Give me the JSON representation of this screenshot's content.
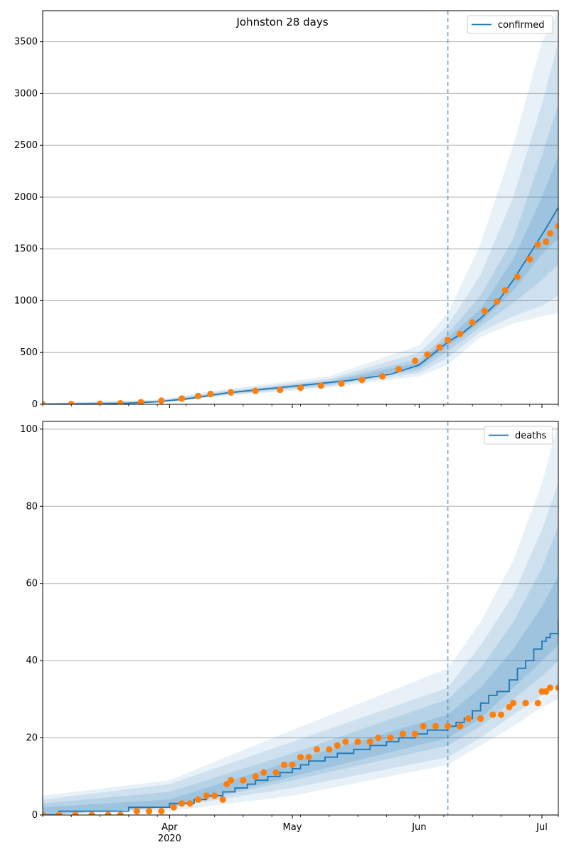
{
  "chart_data": [
    {
      "type": "line",
      "title": "Johnston 28 days",
      "xlabel": "",
      "ylabel": "",
      "x_axis": "date",
      "x_range": [
        "2020-03-01",
        "2020-07-05"
      ],
      "ylim": [
        0,
        3800
      ],
      "yticks": [
        0,
        500,
        1000,
        1500,
        2000,
        2500,
        3000,
        3500
      ],
      "grid": "horizontal",
      "legend": "top-right",
      "forecast_start": "2020-06-08",
      "series": [
        {
          "name": "confirmed",
          "kind": "line",
          "points": [
            [
              "2020-03-01",
              2
            ],
            [
              "2020-03-15",
              4
            ],
            [
              "2020-03-22",
              10
            ],
            [
              "2020-03-29",
              25
            ],
            [
              "2020-04-05",
              50
            ],
            [
              "2020-04-10",
              80
            ],
            [
              "2020-04-15",
              110
            ],
            [
              "2020-04-25",
              150
            ],
            [
              "2020-05-05",
              190
            ],
            [
              "2020-05-15",
              230
            ],
            [
              "2020-05-25",
              290
            ],
            [
              "2020-06-01",
              380
            ],
            [
              "2020-06-08",
              600
            ],
            [
              "2020-06-12",
              700
            ],
            [
              "2020-06-16",
              830
            ],
            [
              "2020-06-20",
              980
            ],
            [
              "2020-06-24",
              1200
            ],
            [
              "2020-06-28",
              1450
            ],
            [
              "2020-07-02",
              1700
            ],
            [
              "2020-07-05",
              1900
            ]
          ]
        },
        {
          "name": "",
          "kind": "scatter",
          "points": [
            [
              "2020-03-01",
              0
            ],
            [
              "2020-03-08",
              2
            ],
            [
              "2020-03-15",
              5
            ],
            [
              "2020-03-20",
              10
            ],
            [
              "2020-03-25",
              20
            ],
            [
              "2020-03-30",
              35
            ],
            [
              "2020-04-04",
              55
            ],
            [
              "2020-04-08",
              80
            ],
            [
              "2020-04-11",
              100
            ],
            [
              "2020-04-16",
              115
            ],
            [
              "2020-04-22",
              130
            ],
            [
              "2020-04-28",
              140
            ],
            [
              "2020-05-03",
              160
            ],
            [
              "2020-05-08",
              180
            ],
            [
              "2020-05-13",
              200
            ],
            [
              "2020-05-18",
              235
            ],
            [
              "2020-05-23",
              270
            ],
            [
              "2020-05-27",
              340
            ],
            [
              "2020-05-31",
              420
            ],
            [
              "2020-06-03",
              480
            ],
            [
              "2020-06-06",
              550
            ],
            [
              "2020-06-08",
              620
            ],
            [
              "2020-06-11",
              680
            ],
            [
              "2020-06-14",
              790
            ],
            [
              "2020-06-17",
              900
            ],
            [
              "2020-06-20",
              990
            ],
            [
              "2020-06-22",
              1100
            ],
            [
              "2020-06-25",
              1230
            ],
            [
              "2020-06-28",
              1400
            ],
            [
              "2020-06-30",
              1540
            ],
            [
              "2020-07-02",
              1570
            ],
            [
              "2020-07-03",
              1650
            ],
            [
              "2020-07-05",
              1720
            ]
          ]
        }
      ],
      "bands": [
        {
          "opacity": 0.1,
          "points": [
            [
              "2020-03-01",
              0,
              10
            ],
            [
              "2020-03-29",
              12,
              45
            ],
            [
              "2020-04-15",
              80,
              150
            ],
            [
              "2020-05-10",
              160,
              270
            ],
            [
              "2020-06-01",
              270,
              570
            ],
            [
              "2020-06-08",
              380,
              880
            ],
            [
              "2020-06-16",
              650,
              1550
            ],
            [
              "2020-06-24",
              780,
              2500
            ],
            [
              "2020-07-01",
              850,
              3500
            ],
            [
              "2020-07-05",
              880,
              3800
            ]
          ]
        },
        {
          "opacity": 0.12,
          "points": [
            [
              "2020-03-01",
              0,
              8
            ],
            [
              "2020-03-29",
              16,
              38
            ],
            [
              "2020-04-15",
              90,
              135
            ],
            [
              "2020-05-10",
              175,
              245
            ],
            [
              "2020-06-01",
              300,
              500
            ],
            [
              "2020-06-08",
              450,
              760
            ],
            [
              "2020-06-16",
              700,
              1250
            ],
            [
              "2020-06-24",
              850,
              2000
            ],
            [
              "2020-07-01",
              950,
              2900
            ],
            [
              "2020-07-05",
              1050,
              3500
            ]
          ]
        },
        {
          "opacity": 0.14,
          "points": [
            [
              "2020-03-01",
              0,
              6
            ],
            [
              "2020-03-29",
              19,
              32
            ],
            [
              "2020-04-15",
              98,
              122
            ],
            [
              "2020-05-10",
              185,
              230
            ],
            [
              "2020-06-01",
              330,
              440
            ],
            [
              "2020-06-08",
              510,
              680
            ],
            [
              "2020-06-16",
              750,
              1050
            ],
            [
              "2020-06-24",
              980,
              1600
            ],
            [
              "2020-07-01",
              1200,
              2400
            ],
            [
              "2020-07-05",
              1350,
              2900
            ]
          ]
        },
        {
          "opacity": 0.16,
          "points": [
            [
              "2020-03-01",
              1,
              4
            ],
            [
              "2020-03-29",
              22,
              28
            ],
            [
              "2020-04-15",
              104,
              116
            ],
            [
              "2020-05-10",
              198,
              218
            ],
            [
              "2020-06-01",
              355,
              405
            ],
            [
              "2020-06-08",
              560,
              640
            ],
            [
              "2020-06-16",
              790,
              920
            ],
            [
              "2020-06-24",
              1100,
              1400
            ],
            [
              "2020-07-01",
              1450,
              2000
            ],
            [
              "2020-07-05",
              1600,
              2400
            ]
          ]
        }
      ]
    },
    {
      "type": "line",
      "title": "",
      "xlabel": "",
      "ylabel": "",
      "x_axis": "date",
      "x_range": [
        "2020-03-01",
        "2020-07-05"
      ],
      "ylim": [
        0,
        102
      ],
      "yticks": [
        0,
        20,
        40,
        60,
        80,
        100
      ],
      "xticks": [
        {
          "date": "2020-04-01",
          "label": "Apr",
          "sublabel": "2020"
        },
        {
          "date": "2020-05-01",
          "label": "May"
        },
        {
          "date": "2020-06-01",
          "label": "Jun"
        },
        {
          "date": "2020-07-01",
          "label": "Jul"
        }
      ],
      "grid": "horizontal",
      "legend": "top-right",
      "forecast_start": "2020-06-08",
      "series": [
        {
          "name": "deaths",
          "kind": "step",
          "points": [
            [
              "2020-03-01",
              0
            ],
            [
              "2020-03-05",
              1
            ],
            [
              "2020-03-22",
              2
            ],
            [
              "2020-04-01",
              3
            ],
            [
              "2020-04-07",
              4
            ],
            [
              "2020-04-10",
              5
            ],
            [
              "2020-04-14",
              6
            ],
            [
              "2020-04-17",
              7
            ],
            [
              "2020-04-20",
              8
            ],
            [
              "2020-04-22",
              9
            ],
            [
              "2020-04-25",
              10
            ],
            [
              "2020-04-28",
              11
            ],
            [
              "2020-05-01",
              12
            ],
            [
              "2020-05-03",
              13
            ],
            [
              "2020-05-05",
              14
            ],
            [
              "2020-05-09",
              15
            ],
            [
              "2020-05-12",
              16
            ],
            [
              "2020-05-16",
              17
            ],
            [
              "2020-05-20",
              18
            ],
            [
              "2020-05-24",
              19
            ],
            [
              "2020-05-27",
              20
            ],
            [
              "2020-05-31",
              21
            ],
            [
              "2020-06-03",
              22
            ],
            [
              "2020-06-08",
              23
            ],
            [
              "2020-06-10",
              24
            ],
            [
              "2020-06-12",
              25
            ],
            [
              "2020-06-14",
              27
            ],
            [
              "2020-06-16",
              29
            ],
            [
              "2020-06-18",
              31
            ],
            [
              "2020-06-20",
              32
            ],
            [
              "2020-06-23",
              35
            ],
            [
              "2020-06-25",
              38
            ],
            [
              "2020-06-27",
              40
            ],
            [
              "2020-06-29",
              43
            ],
            [
              "2020-07-01",
              45
            ],
            [
              "2020-07-02",
              46
            ],
            [
              "2020-07-03",
              47
            ],
            [
              "2020-07-05",
              51
            ]
          ]
        },
        {
          "name": "",
          "kind": "scatter",
          "points": [
            [
              "2020-03-01",
              0
            ],
            [
              "2020-03-05",
              0
            ],
            [
              "2020-03-09",
              0
            ],
            [
              "2020-03-13",
              0
            ],
            [
              "2020-03-17",
              0
            ],
            [
              "2020-03-20",
              0
            ],
            [
              "2020-03-24",
              1
            ],
            [
              "2020-03-27",
              1
            ],
            [
              "2020-03-30",
              1
            ],
            [
              "2020-04-02",
              2
            ],
            [
              "2020-04-04",
              3
            ],
            [
              "2020-04-06",
              3
            ],
            [
              "2020-04-08",
              4
            ],
            [
              "2020-04-10",
              5
            ],
            [
              "2020-04-12",
              5
            ],
            [
              "2020-04-14",
              4
            ],
            [
              "2020-04-15",
              8
            ],
            [
              "2020-04-16",
              9
            ],
            [
              "2020-04-19",
              9
            ],
            [
              "2020-04-22",
              10
            ],
            [
              "2020-04-24",
              11
            ],
            [
              "2020-04-27",
              11
            ],
            [
              "2020-04-29",
              13
            ],
            [
              "2020-05-01",
              13
            ],
            [
              "2020-05-03",
              15
            ],
            [
              "2020-05-05",
              15
            ],
            [
              "2020-05-07",
              17
            ],
            [
              "2020-05-10",
              17
            ],
            [
              "2020-05-12",
              18
            ],
            [
              "2020-05-14",
              19
            ],
            [
              "2020-05-17",
              19
            ],
            [
              "2020-05-20",
              19
            ],
            [
              "2020-05-22",
              20
            ],
            [
              "2020-05-25",
              20
            ],
            [
              "2020-05-28",
              21
            ],
            [
              "2020-05-31",
              21
            ],
            [
              "2020-06-02",
              23
            ],
            [
              "2020-06-05",
              23
            ],
            [
              "2020-06-08",
              23
            ],
            [
              "2020-06-11",
              23
            ],
            [
              "2020-06-13",
              25
            ],
            [
              "2020-06-16",
              25
            ],
            [
              "2020-06-19",
              26
            ],
            [
              "2020-06-21",
              26
            ],
            [
              "2020-06-23",
              28
            ],
            [
              "2020-06-24",
              29
            ],
            [
              "2020-06-27",
              29
            ],
            [
              "2020-06-30",
              29
            ],
            [
              "2020-07-01",
              32
            ],
            [
              "2020-07-02",
              32
            ],
            [
              "2020-07-03",
              33
            ],
            [
              "2020-07-05",
              33
            ]
          ]
        }
      ],
      "bands": [
        {
          "opacity": 0.1,
          "points": [
            [
              "2020-03-01",
              0,
              5
            ],
            [
              "2020-04-01",
              1,
              9
            ],
            [
              "2020-05-01",
              5,
              22
            ],
            [
              "2020-06-08",
              13,
              38
            ],
            [
              "2020-06-16",
              18,
              50
            ],
            [
              "2020-06-24",
              23,
              66
            ],
            [
              "2020-07-01",
              28,
              86
            ],
            [
              "2020-07-05",
              30,
              102
            ]
          ]
        },
        {
          "opacity": 0.12,
          "points": [
            [
              "2020-03-01",
              0,
              4
            ],
            [
              "2020-04-01",
              2,
              8
            ],
            [
              "2020-05-01",
              7,
              19
            ],
            [
              "2020-06-08",
              15,
              33
            ],
            [
              "2020-06-16",
              20,
              44
            ],
            [
              "2020-06-24",
              26,
              57
            ],
            [
              "2020-07-01",
              31,
              74
            ],
            [
              "2020-07-05",
              34,
              86
            ]
          ]
        },
        {
          "opacity": 0.14,
          "points": [
            [
              "2020-03-01",
              0,
              3
            ],
            [
              "2020-04-01",
              2,
              6
            ],
            [
              "2020-05-01",
              9,
              16
            ],
            [
              "2020-06-08",
              18,
              30
            ],
            [
              "2020-06-16",
              23,
              38
            ],
            [
              "2020-06-24",
              30,
              50
            ],
            [
              "2020-07-01",
              36,
              64
            ],
            [
              "2020-07-05",
              40,
              75
            ]
          ]
        },
        {
          "opacity": 0.16,
          "points": [
            [
              "2020-03-01",
              0,
              2
            ],
            [
              "2020-04-01",
              2,
              4
            ],
            [
              "2020-05-01",
              10,
              14
            ],
            [
              "2020-06-08",
              20,
              26
            ],
            [
              "2020-06-16",
              25,
              33
            ],
            [
              "2020-06-24",
              33,
              43
            ],
            [
              "2020-07-01",
              40,
              54
            ],
            [
              "2020-07-05",
              44,
              62
            ]
          ]
        }
      ]
    }
  ],
  "colors": {
    "line": "#1f77b4",
    "points": "#ff7f0e",
    "band": "#1f77b4",
    "grid": "#b0b0b0",
    "forecast_line": "#1f77b4"
  }
}
